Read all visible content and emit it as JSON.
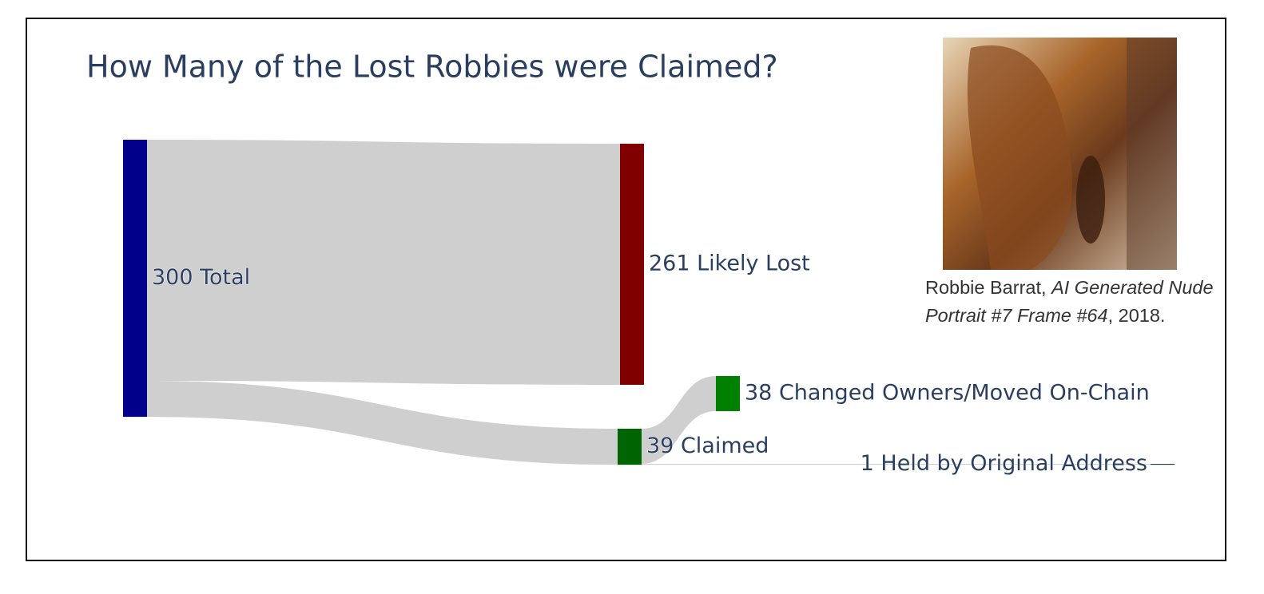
{
  "chart_data": {
    "type": "sankey",
    "title": "How Many of the Lost Robbies were Claimed?",
    "nodes": [
      {
        "label": "300 Total",
        "color": "#00008b"
      },
      {
        "label": "261 Likely Lost",
        "color": "#800000"
      },
      {
        "label": "39 Claimed",
        "color": "#006400"
      },
      {
        "label": "38 Changed Owners/Moved On-Chain",
        "color": "#008000"
      },
      {
        "label": "1 Held by Original Address",
        "color": "#2a3f5f"
      }
    ],
    "links": [
      {
        "source": 0,
        "target": 1,
        "value": 261
      },
      {
        "source": 0,
        "target": 2,
        "value": 39
      },
      {
        "source": 2,
        "target": 3,
        "value": 38
      },
      {
        "source": 2,
        "target": 4,
        "value": 1
      }
    ],
    "link_color": "#cccccc"
  },
  "caption": {
    "author": "Robbie Barrat,",
    "work": "AI Generated Nude Portrait #7 Frame #64",
    "rest": ", 2018."
  }
}
